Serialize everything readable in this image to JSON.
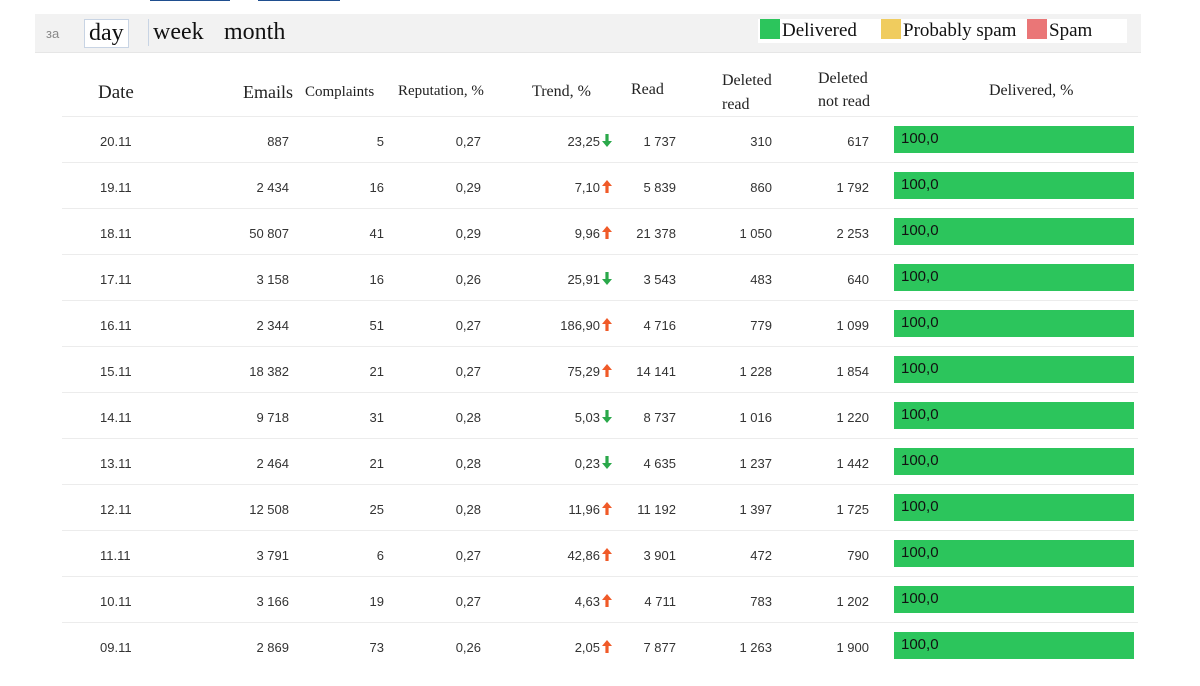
{
  "toolbar": {
    "prefix": "за",
    "periods": {
      "day": "day",
      "week": "week",
      "month": "month"
    }
  },
  "legend": {
    "delivered": "Delivered",
    "probably_spam": "Probably spam",
    "spam": "Spam",
    "colors": {
      "delivered": "#2cc55c",
      "probably_spam": "#f0cc5e",
      "spam": "#ea7677"
    }
  },
  "columns": {
    "date": "Date",
    "emails": "Emails",
    "complaints": "Complaints",
    "reputation": "Reputation, %",
    "trend": "Trend, %",
    "read": "Read",
    "deleted_read": [
      "Deleted",
      "read"
    ],
    "deleted_not_read": [
      "Deleted",
      "not read"
    ],
    "delivered": "Delivered, %"
  },
  "trend_colors": {
    "up": "#f05a28",
    "down": "#2aa84a"
  },
  "rows": [
    {
      "date": "20.11",
      "emails": "887",
      "complaints": "5",
      "reputation": "0,27",
      "trend": "23,25",
      "trend_dir": "down",
      "read": "1 737",
      "deleted_read": "310",
      "deleted_not_read": "617",
      "delivered": "100,0"
    },
    {
      "date": "19.11",
      "emails": "2 434",
      "complaints": "16",
      "reputation": "0,29",
      "trend": "7,10",
      "trend_dir": "up",
      "read": "5 839",
      "deleted_read": "860",
      "deleted_not_read": "1 792",
      "delivered": "100,0"
    },
    {
      "date": "18.11",
      "emails": "50 807",
      "complaints": "41",
      "reputation": "0,29",
      "trend": "9,96",
      "trend_dir": "up",
      "read": "21 378",
      "deleted_read": "1 050",
      "deleted_not_read": "2 253",
      "delivered": "100,0"
    },
    {
      "date": "17.11",
      "emails": "3 158",
      "complaints": "16",
      "reputation": "0,26",
      "trend": "25,91",
      "trend_dir": "down",
      "read": "3 543",
      "deleted_read": "483",
      "deleted_not_read": "640",
      "delivered": "100,0"
    },
    {
      "date": "16.11",
      "emails": "2 344",
      "complaints": "51",
      "reputation": "0,27",
      "trend": "186,90",
      "trend_dir": "up",
      "read": "4 716",
      "deleted_read": "779",
      "deleted_not_read": "1 099",
      "delivered": "100,0"
    },
    {
      "date": "15.11",
      "emails": "18 382",
      "complaints": "21",
      "reputation": "0,27",
      "trend": "75,29",
      "trend_dir": "up",
      "read": "14 141",
      "deleted_read": "1 228",
      "deleted_not_read": "1 854",
      "delivered": "100,0"
    },
    {
      "date": "14.11",
      "emails": "9 718",
      "complaints": "31",
      "reputation": "0,28",
      "trend": "5,03",
      "trend_dir": "down",
      "read": "8 737",
      "deleted_read": "1 016",
      "deleted_not_read": "1 220",
      "delivered": "100,0"
    },
    {
      "date": "13.11",
      "emails": "2 464",
      "complaints": "21",
      "reputation": "0,28",
      "trend": "0,23",
      "trend_dir": "down",
      "read": "4 635",
      "deleted_read": "1 237",
      "deleted_not_read": "1 442",
      "delivered": "100,0"
    },
    {
      "date": "12.11",
      "emails": "12 508",
      "complaints": "25",
      "reputation": "0,28",
      "trend": "11,96",
      "trend_dir": "up",
      "read": "11 192",
      "deleted_read": "1 397",
      "deleted_not_read": "1 725",
      "delivered": "100,0"
    },
    {
      "date": "11.11",
      "emails": "3 791",
      "complaints": "6",
      "reputation": "0,27",
      "trend": "42,86",
      "trend_dir": "up",
      "read": "3 901",
      "deleted_read": "472",
      "deleted_not_read": "790",
      "delivered": "100,0"
    },
    {
      "date": "10.11",
      "emails": "3 166",
      "complaints": "19",
      "reputation": "0,27",
      "trend": "4,63",
      "trend_dir": "up",
      "read": "4 711",
      "deleted_read": "783",
      "deleted_not_read": "1 202",
      "delivered": "100,0"
    },
    {
      "date": "09.11",
      "emails": "2 869",
      "complaints": "73",
      "reputation": "0,26",
      "trend": "2,05",
      "trend_dir": "up",
      "read": "7 877",
      "deleted_read": "1 263",
      "deleted_not_read": "1 900",
      "delivered": "100,0"
    }
  ]
}
